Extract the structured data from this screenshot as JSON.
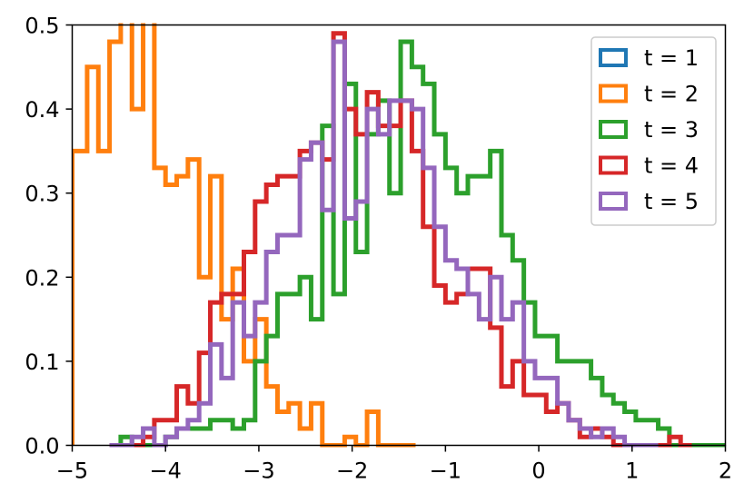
{
  "chart_data": {
    "type": "histogram",
    "title": "",
    "xlabel": "",
    "ylabel": "",
    "xlim": [
      -5,
      2
    ],
    "ylim": [
      0,
      0.5
    ],
    "xticks": [
      -5,
      -4,
      -3,
      -2,
      -1,
      0,
      1,
      2
    ],
    "xtick_labels": [
      "−5",
      "−4",
      "−3",
      "−2",
      "−1",
      "0",
      "1",
      "2"
    ],
    "yticks": [
      0.0,
      0.1,
      0.2,
      0.3,
      0.4,
      0.5
    ],
    "ytick_labels": [
      "0.0",
      "0.1",
      "0.2",
      "0.3",
      "0.4",
      "0.5"
    ],
    "grid": false,
    "legend_position": "top-right",
    "histtype": "step",
    "series": [
      {
        "name": "t = 1",
        "color": "#1f77b4",
        "bins": [],
        "heights": []
      },
      {
        "name": "t = 2",
        "color": "#ff7f0e",
        "bins": [
          -5.0,
          -4.84,
          -4.72,
          -4.6,
          -4.48,
          -4.36,
          -4.24,
          -4.12,
          -4.0,
          -3.88,
          -3.76,
          -3.64,
          -3.52,
          -3.4,
          -3.28,
          -3.16,
          -3.04,
          -2.92,
          -2.8,
          -2.68,
          -2.56,
          -2.44,
          -2.32,
          -2.2,
          -2.08,
          -1.96,
          -1.84,
          -1.72,
          -1.6,
          -1.48
        ],
        "heights": [
          0.35,
          0.45,
          0.35,
          0.48,
          0.51,
          0.4,
          0.51,
          0.33,
          0.31,
          0.32,
          0.34,
          0.2,
          0.32,
          0.15,
          0.21,
          0.1,
          0.15,
          0.07,
          0.04,
          0.05,
          0.02,
          0.05,
          0.0,
          0.0,
          0.01,
          0.0,
          0.04,
          0.0,
          0.0,
          0.0
        ]
      },
      {
        "name": "t = 3",
        "color": "#2ca02c",
        "bins": [
          -4.6,
          -4.48,
          -4.36,
          -4.24,
          -4.12,
          -4.0,
          -3.88,
          -3.76,
          -3.64,
          -3.52,
          -3.4,
          -3.28,
          -3.16,
          -3.04,
          -2.92,
          -2.8,
          -2.68,
          -2.56,
          -2.44,
          -2.32,
          -2.2,
          -2.08,
          -1.96,
          -1.84,
          -1.72,
          -1.6,
          -1.48,
          -1.36,
          -1.24,
          -1.12,
          -1.0,
          -0.88,
          -0.76,
          -0.64,
          -0.52,
          -0.4,
          -0.28,
          -0.16,
          -0.04,
          0.08,
          0.2,
          0.32,
          0.44,
          0.56,
          0.68,
          0.8,
          0.92,
          1.04,
          1.16,
          1.28,
          1.4,
          1.52,
          1.64,
          1.76,
          1.88,
          2.0
        ],
        "heights": [
          0.0,
          0.01,
          0.0,
          0.0,
          0.0,
          0.01,
          0.02,
          0.02,
          0.02,
          0.03,
          0.03,
          0.02,
          0.03,
          0.1,
          0.13,
          0.18,
          0.18,
          0.2,
          0.15,
          0.38,
          0.18,
          0.43,
          0.23,
          0.37,
          0.41,
          0.3,
          0.48,
          0.45,
          0.43,
          0.37,
          0.33,
          0.3,
          0.32,
          0.32,
          0.35,
          0.25,
          0.22,
          0.17,
          0.13,
          0.13,
          0.1,
          0.1,
          0.1,
          0.08,
          0.06,
          0.05,
          0.04,
          0.03,
          0.03,
          0.02,
          0.0,
          0.0,
          0.0,
          0.0,
          0.0
        ]
      },
      {
        "name": "t = 4",
        "color": "#d62728",
        "bins": [
          -4.6,
          -4.48,
          -4.36,
          -4.24,
          -4.12,
          -4.0,
          -3.88,
          -3.76,
          -3.64,
          -3.52,
          -3.4,
          -3.28,
          -3.16,
          -3.04,
          -2.92,
          -2.8,
          -2.68,
          -2.56,
          -2.44,
          -2.32,
          -2.2,
          -2.08,
          -1.96,
          -1.84,
          -1.72,
          -1.6,
          -1.48,
          -1.36,
          -1.24,
          -1.12,
          -1.0,
          -0.88,
          -0.76,
          -0.64,
          -0.52,
          -0.4,
          -0.28,
          -0.16,
          -0.04,
          0.08,
          0.2,
          0.32,
          0.44,
          0.56,
          0.68,
          0.8,
          0.92,
          1.04,
          1.16,
          1.28,
          1.4,
          1.52
        ],
        "heights": [
          0.0,
          0.0,
          0.0,
          0.01,
          0.03,
          0.03,
          0.07,
          0.05,
          0.11,
          0.17,
          0.18,
          0.18,
          0.23,
          0.29,
          0.31,
          0.32,
          0.32,
          0.35,
          0.36,
          0.34,
          0.49,
          0.4,
          0.37,
          0.42,
          0.38,
          0.38,
          0.41,
          0.35,
          0.26,
          0.19,
          0.17,
          0.18,
          0.21,
          0.21,
          0.14,
          0.07,
          0.1,
          0.06,
          0.06,
          0.04,
          0.05,
          0.03,
          0.01,
          0.02,
          0.01,
          0.0,
          0.0,
          0.0,
          0.0,
          0.0,
          0.01,
          0.0
        ]
      },
      {
        "name": "t = 5",
        "color": "#9467bd",
        "bins": [
          -4.6,
          -4.48,
          -4.36,
          -4.24,
          -4.12,
          -4.0,
          -3.88,
          -3.76,
          -3.64,
          -3.52,
          -3.4,
          -3.28,
          -3.16,
          -3.04,
          -2.92,
          -2.8,
          -2.68,
          -2.56,
          -2.44,
          -2.32,
          -2.2,
          -2.08,
          -1.96,
          -1.84,
          -1.72,
          -1.6,
          -1.48,
          -1.36,
          -1.24,
          -1.12,
          -1.0,
          -0.88,
          -0.76,
          -0.64,
          -0.52,
          -0.4,
          -0.28,
          -0.16,
          -0.04,
          0.08,
          0.2,
          0.32,
          0.44,
          0.56,
          0.68,
          0.8,
          0.92,
          1.04,
          1.16
        ],
        "heights": [
          0.0,
          0.0,
          0.01,
          0.02,
          0.0,
          0.01,
          0.02,
          0.03,
          0.05,
          0.12,
          0.08,
          0.17,
          0.13,
          0.17,
          0.23,
          0.25,
          0.25,
          0.34,
          0.36,
          0.28,
          0.48,
          0.27,
          0.29,
          0.4,
          0.37,
          0.41,
          0.41,
          0.4,
          0.33,
          0.26,
          0.22,
          0.21,
          0.18,
          0.15,
          0.2,
          0.15,
          0.17,
          0.1,
          0.08,
          0.08,
          0.05,
          0.03,
          0.02,
          0.01,
          0.02,
          0.01,
          0.0,
          0.0,
          0.0
        ]
      }
    ]
  }
}
